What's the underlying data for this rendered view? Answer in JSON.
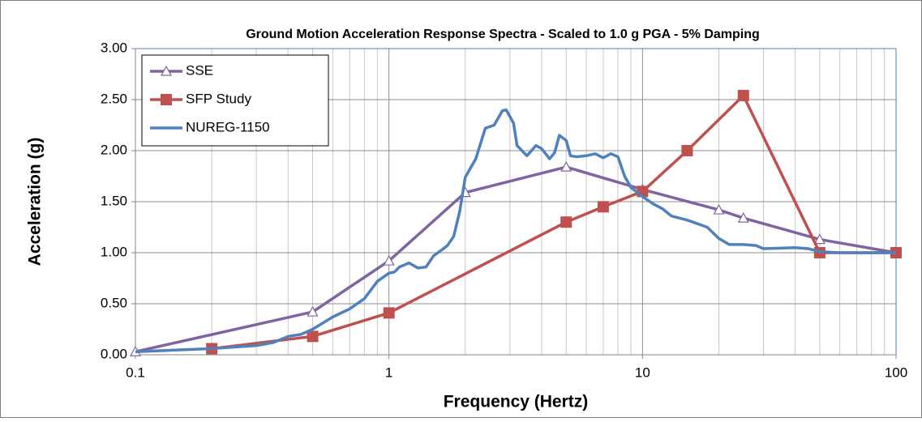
{
  "chart_data": {
    "type": "line",
    "title": "Ground Motion Acceleration Response Spectra - Scaled to 1.0 g PGA - 5% Damping",
    "x_label": "Frequency (Hertz)",
    "y_label": "Acceleration (g)",
    "x_scale": "log",
    "xlim": [
      0.1,
      100
    ],
    "xticks": [
      0.1,
      1,
      10,
      100
    ],
    "ylim": [
      0,
      3
    ],
    "yticks": [
      {
        "value": 0,
        "label": "0.00"
      },
      {
        "value": 0.5,
        "label": "0.50"
      },
      {
        "value": 1,
        "label": "1.00"
      },
      {
        "value": 1.5,
        "label": "1.50"
      },
      {
        "value": 2,
        "label": "2.00"
      },
      {
        "value": 2.5,
        "label": "2.50"
      },
      {
        "value": 3,
        "label": "3.00"
      }
    ],
    "grid": true,
    "minor_grid": true,
    "legend": "upper-left",
    "series": [
      {
        "name": "SSE",
        "color": "#8064a2",
        "marker": "triangle",
        "x": [
          0.1,
          0.5,
          1,
          2,
          5,
          10,
          20,
          25,
          50,
          100
        ],
        "values": [
          0.03,
          0.42,
          0.92,
          1.59,
          1.84,
          1.62,
          1.42,
          1.34,
          1.13,
          1.0
        ]
      },
      {
        "name": "SFP Study",
        "color": "#c0504d",
        "marker": "square",
        "x": [
          0.2,
          0.5,
          1,
          5,
          7,
          10,
          15,
          25,
          50,
          100
        ],
        "values": [
          0.06,
          0.18,
          0.41,
          1.3,
          1.45,
          1.6,
          2.0,
          2.54,
          1.0,
          1.0
        ]
      },
      {
        "name": "NUREG-1150",
        "color": "#4f81bd",
        "marker": "none",
        "x": [
          0.1,
          0.2,
          0.3,
          0.35,
          0.4,
          0.45,
          0.5,
          0.6,
          0.7,
          0.8,
          0.9,
          1.0,
          1.05,
          1.1,
          1.2,
          1.3,
          1.4,
          1.5,
          1.6,
          1.7,
          1.8,
          1.9,
          2.0,
          2.2,
          2.4,
          2.6,
          2.8,
          2.9,
          3.1,
          3.2,
          3.5,
          3.8,
          4.0,
          4.3,
          4.5,
          4.7,
          5.0,
          5.2,
          5.5,
          6.0,
          6.5,
          7.0,
          7.5,
          8.0,
          8.5,
          9.0,
          10,
          11,
          12,
          13,
          15,
          18,
          20,
          22,
          25,
          28,
          30,
          40,
          45,
          50,
          60,
          100
        ],
        "values": [
          0.03,
          0.06,
          0.09,
          0.12,
          0.18,
          0.2,
          0.25,
          0.37,
          0.45,
          0.55,
          0.72,
          0.8,
          0.81,
          0.86,
          0.9,
          0.85,
          0.86,
          0.97,
          1.02,
          1.07,
          1.16,
          1.4,
          1.74,
          1.92,
          2.22,
          2.25,
          2.39,
          2.4,
          2.27,
          2.05,
          1.95,
          2.05,
          2.02,
          1.92,
          1.98,
          2.15,
          2.1,
          1.95,
          1.94,
          1.95,
          1.97,
          1.93,
          1.97,
          1.94,
          1.75,
          1.64,
          1.55,
          1.48,
          1.43,
          1.36,
          1.32,
          1.25,
          1.14,
          1.08,
          1.08,
          1.07,
          1.04,
          1.05,
          1.04,
          1.01,
          1.0,
          1.0
        ]
      }
    ]
  }
}
